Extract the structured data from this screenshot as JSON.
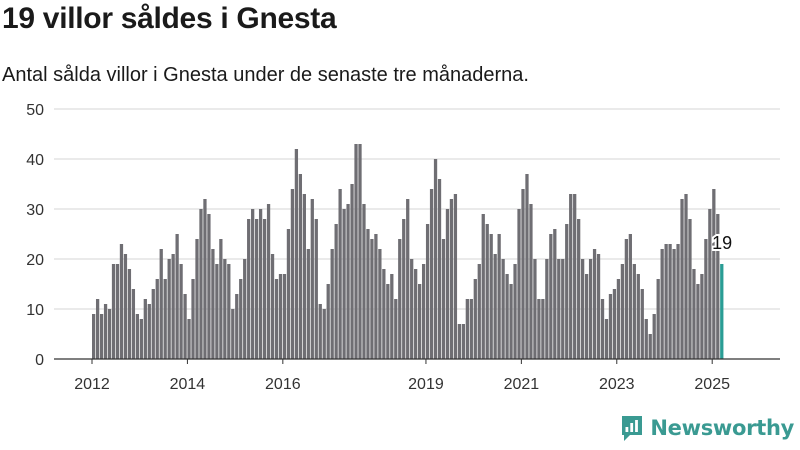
{
  "header": {
    "title": "19 villor såldes i Gnesta",
    "subtitle": "Antal sålda villor i Gnesta under de senaste tre månaderna."
  },
  "brand": {
    "name": "Newsworthy",
    "icon": "newsworthy-logo-icon"
  },
  "colors": {
    "bar": "#6f6e73",
    "highlight": "#2a9d95",
    "axis": "#333333",
    "grid": "#d6d6d6"
  },
  "chart_data": {
    "type": "bar",
    "title": "",
    "xlabel": "",
    "ylabel": "",
    "ylim": [
      0,
      50
    ],
    "yticks": [
      0,
      10,
      20,
      30,
      40,
      50
    ],
    "x_tick_labels": [
      "2012",
      "2014",
      "2016",
      "2019",
      "2021",
      "2023",
      "2025"
    ],
    "x_start": "2012-01",
    "x_end": "2025-08",
    "grid": true,
    "highlight_label": "19",
    "values": [
      9,
      12,
      9,
      11,
      10,
      19,
      19,
      23,
      21,
      18,
      14,
      9,
      8,
      12,
      11,
      14,
      16,
      22,
      16,
      20,
      21,
      25,
      19,
      13,
      8,
      16,
      24,
      30,
      32,
      29,
      22,
      19,
      24,
      20,
      19,
      10,
      13,
      16,
      20,
      28,
      30,
      28,
      30,
      28,
      31,
      21,
      16,
      17,
      17,
      26,
      34,
      42,
      37,
      33,
      22,
      32,
      28,
      11,
      10,
      15,
      22,
      27,
      34,
      30,
      31,
      35,
      43,
      43,
      31,
      26,
      24,
      25,
      22,
      18,
      15,
      17,
      12,
      24,
      28,
      32,
      20,
      18,
      15,
      19,
      27,
      34,
      40,
      36,
      24,
      30,
      32,
      33,
      7,
      7,
      12,
      12,
      16,
      19,
      29,
      27,
      25,
      21,
      25,
      20,
      17,
      15,
      19,
      30,
      34,
      37,
      31,
      20,
      12,
      12,
      20,
      25,
      26,
      20,
      20,
      27,
      33,
      33,
      28,
      20,
      17,
      20,
      22,
      21,
      12,
      8,
      13,
      14,
      16,
      19,
      24,
      25,
      19,
      17,
      14,
      8,
      5,
      9,
      16,
      22,
      23,
      23,
      22,
      23,
      32,
      33,
      28,
      18,
      15,
      17,
      24,
      30,
      34,
      29,
      19
    ]
  }
}
